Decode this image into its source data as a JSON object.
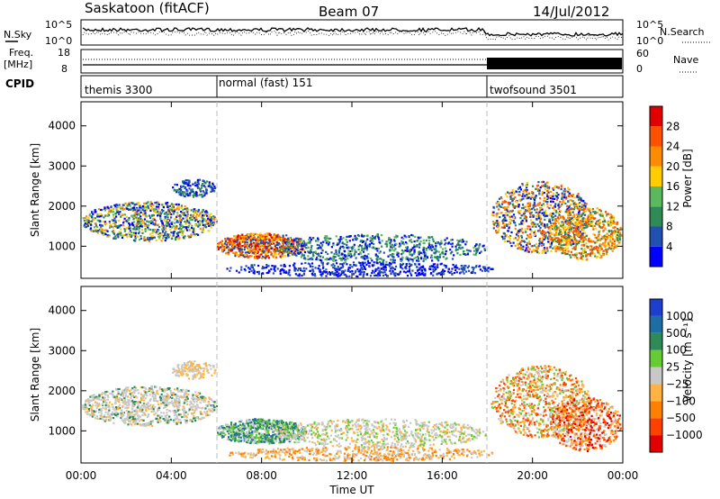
{
  "header": {
    "station": "Saskatoon (fitACF)",
    "beam": "Beam 07",
    "date": "14/Jul/2012"
  },
  "sky_panel": {
    "left_label": "N.Sky",
    "right_label": "N.Search",
    "left_ticks": [
      "10^5",
      "10^0"
    ],
    "right_ticks": [
      "10^5",
      "10^0"
    ]
  },
  "freq_panel": {
    "left_label_1": "Freq.",
    "left_label_2": "[MHz]",
    "right_label": "Nave",
    "left_ticks": [
      "18",
      "8"
    ],
    "right_ticks": [
      "60",
      "0"
    ]
  },
  "cpid_panel": {
    "label": "CPID",
    "modes": [
      {
        "name": "themis 3300",
        "start_hour": 0
      },
      {
        "name": "normal (fast) 151",
        "start_hour": 6
      },
      {
        "name": "twofsound 3501",
        "start_hour": 18
      }
    ]
  },
  "chart_data": [
    {
      "type": "heatmap",
      "name": "power",
      "ylabel": "Slant Range [km]",
      "xlim": [
        0,
        24
      ],
      "ylim": [
        200,
        4600
      ],
      "y_ticks": [
        "1000",
        "2000",
        "3000",
        "4000"
      ],
      "colorbar": {
        "label": "Power [dB]",
        "ticks": [
          "4",
          "8",
          "12",
          "16",
          "20",
          "24",
          "28"
        ],
        "colors": [
          "#0000ff",
          "#2050b0",
          "#2e8b57",
          "#5cb85c",
          "#ffcc00",
          "#ff8c00",
          "#ff5000",
          "#e00000"
        ]
      }
    },
    {
      "type": "heatmap",
      "name": "velocity",
      "ylabel": "Slant Range [km]",
      "xlabel": "Time UT",
      "xlim": [
        0,
        24
      ],
      "ylim": [
        200,
        4600
      ],
      "y_ticks": [
        "1000",
        "2000",
        "3000",
        "4000"
      ],
      "x_ticks": [
        "00:00",
        "04:00",
        "08:00",
        "12:00",
        "16:00",
        "20:00",
        "00:00"
      ],
      "colorbar": {
        "label": "Velocity [m s⁻¹]",
        "ticks": [
          "1000",
          "500",
          "100",
          "25",
          "−25",
          "−100",
          "−500",
          "−1000"
        ],
        "colors": [
          "#1c3fd0",
          "#1e6ea6",
          "#2e8b57",
          "#66cc33",
          "#c8c8c8",
          "#ffb340",
          "#ff8000",
          "#ff4000",
          "#e00000"
        ]
      }
    }
  ]
}
